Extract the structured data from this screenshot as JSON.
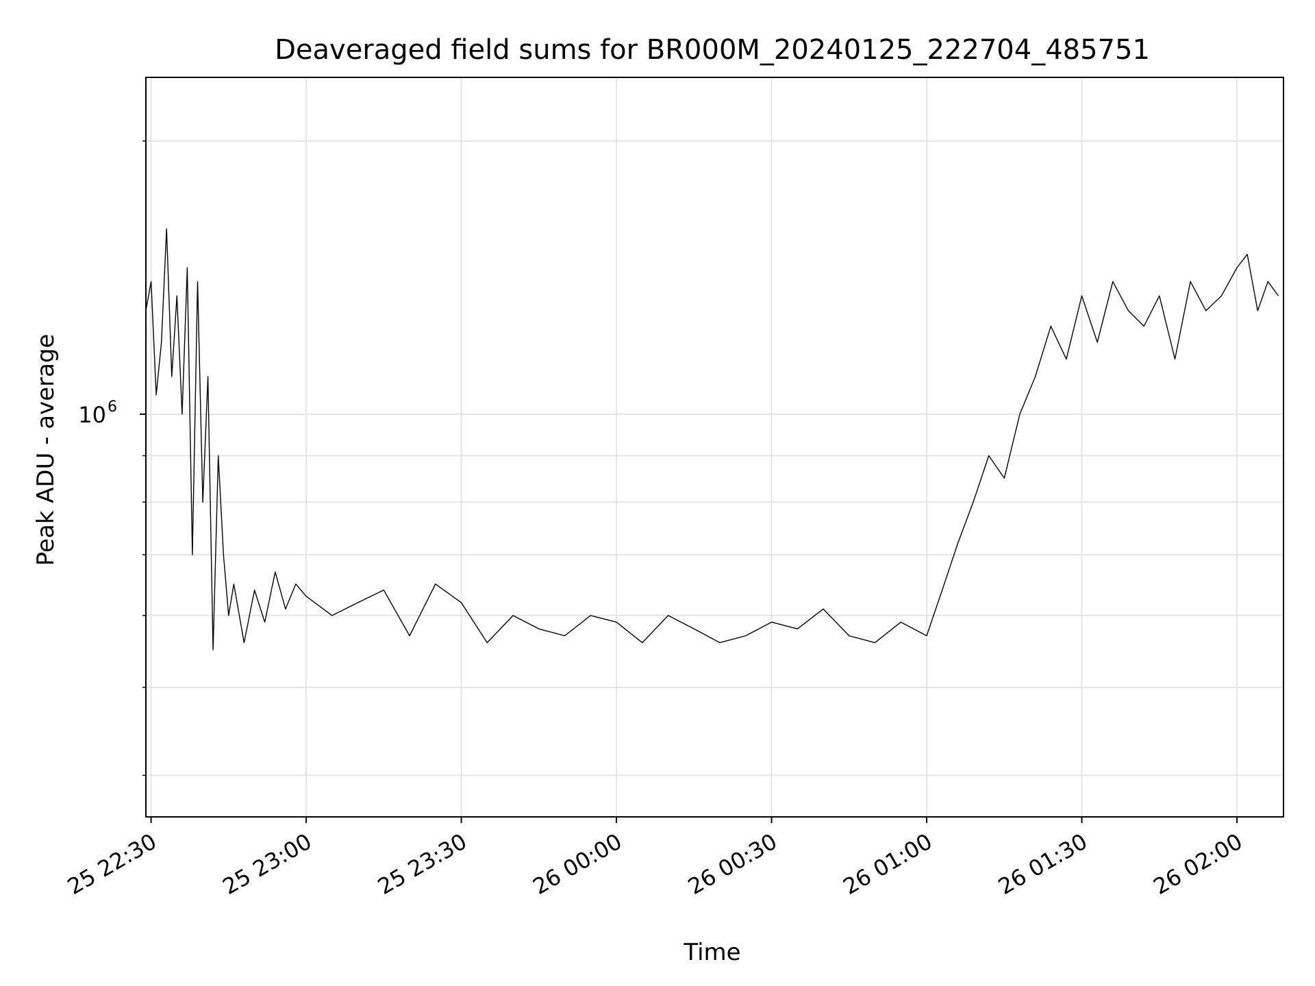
{
  "chart_data": {
    "type": "line",
    "title": "Deaveraged field sums for BR000M_20240125_222704_485751",
    "xlabel": "Time",
    "ylabel": "Peak ADU - average",
    "xscale": "time",
    "yscale": "log",
    "grid": true,
    "legend": "none",
    "xlim": [
      "2024-01-25 22:29:00",
      "2024-01-26 02:09:00"
    ],
    "ylim": [
      360000,
      2350000
    ],
    "x_ticks": [
      {
        "t": "2024-01-25 22:30:00",
        "label": "25 22:30"
      },
      {
        "t": "2024-01-25 23:00:00",
        "label": "25 23:00"
      },
      {
        "t": "2024-01-25 23:30:00",
        "label": "25 23:30"
      },
      {
        "t": "2024-01-26 00:00:00",
        "label": "26 00:00"
      },
      {
        "t": "2024-01-26 00:30:00",
        "label": "26 00:30"
      },
      {
        "t": "2024-01-26 01:00:00",
        "label": "26 01:00"
      },
      {
        "t": "2024-01-26 01:30:00",
        "label": "26 01:30"
      },
      {
        "t": "2024-01-26 02:00:00",
        "label": "26 02:00"
      }
    ],
    "y_major_ticks": [
      {
        "value": 1000000,
        "label": "10",
        "exponent": "6"
      }
    ],
    "y_minor_ticks": [
      400000,
      500000,
      600000,
      700000,
      800000,
      900000,
      2000000
    ],
    "series_color": "#000000",
    "series": [
      {
        "x": [
          "2024-01-25 22:29:00",
          "2024-01-25 22:30:00",
          "2024-01-25 22:31:00",
          "2024-01-25 22:32:00",
          "2024-01-25 22:33:00",
          "2024-01-25 22:34:00",
          "2024-01-25 22:35:00",
          "2024-01-25 22:36:00",
          "2024-01-25 22:37:00",
          "2024-01-25 22:38:00",
          "2024-01-25 22:39:00",
          "2024-01-25 22:40:00",
          "2024-01-25 22:41:00",
          "2024-01-25 22:42:00",
          "2024-01-25 22:43:00",
          "2024-01-25 22:44:00",
          "2024-01-25 22:45:00",
          "2024-01-25 22:46:00",
          "2024-01-25 22:48:00",
          "2024-01-25 22:50:00",
          "2024-01-25 22:52:00",
          "2024-01-25 22:54:00",
          "2024-01-25 22:56:00",
          "2024-01-25 22:58:00",
          "2024-01-25 23:00:00",
          "2024-01-25 23:05:00",
          "2024-01-25 23:10:00",
          "2024-01-25 23:15:00",
          "2024-01-25 23:20:00",
          "2024-01-25 23:25:00",
          "2024-01-25 23:30:00",
          "2024-01-25 23:35:00",
          "2024-01-25 23:40:00",
          "2024-01-25 23:45:00",
          "2024-01-25 23:50:00",
          "2024-01-25 23:55:00",
          "2024-01-26 00:00:00",
          "2024-01-26 00:05:00",
          "2024-01-26 00:10:00",
          "2024-01-26 00:15:00",
          "2024-01-26 00:20:00",
          "2024-01-26 00:25:00",
          "2024-01-26 00:30:00",
          "2024-01-26 00:35:00",
          "2024-01-26 00:40:00",
          "2024-01-26 00:45:00",
          "2024-01-26 00:50:00",
          "2024-01-26 00:55:00",
          "2024-01-26 01:00:00",
          "2024-01-26 01:03:00",
          "2024-01-26 01:06:00",
          "2024-01-26 01:09:00",
          "2024-01-26 01:12:00",
          "2024-01-26 01:15:00",
          "2024-01-26 01:18:00",
          "2024-01-26 01:21:00",
          "2024-01-26 01:24:00",
          "2024-01-26 01:27:00",
          "2024-01-26 01:30:00",
          "2024-01-26 01:33:00",
          "2024-01-26 01:36:00",
          "2024-01-26 01:39:00",
          "2024-01-26 01:42:00",
          "2024-01-26 01:45:00",
          "2024-01-26 01:48:00",
          "2024-01-26 01:51:00",
          "2024-01-26 01:54:00",
          "2024-01-26 01:57:00",
          "2024-01-26 02:00:00",
          "2024-01-26 02:02:00",
          "2024-01-26 02:04:00",
          "2024-01-26 02:06:00",
          "2024-01-26 02:08:00"
        ],
        "y": [
          1300000,
          1400000,
          1050000,
          1200000,
          1600000,
          1100000,
          1350000,
          1000000,
          1450000,
          700000,
          1400000,
          800000,
          1100000,
          550000,
          900000,
          700000,
          600000,
          650000,
          560000,
          640000,
          590000,
          670000,
          610000,
          650000,
          630000,
          600000,
          620000,
          640000,
          570000,
          650000,
          620000,
          560000,
          600000,
          580000,
          570000,
          600000,
          590000,
          560000,
          600000,
          580000,
          560000,
          570000,
          590000,
          580000,
          610000,
          570000,
          560000,
          590000,
          570000,
          640000,
          720000,
          800000,
          900000,
          850000,
          1000000,
          1100000,
          1250000,
          1150000,
          1350000,
          1200000,
          1400000,
          1300000,
          1250000,
          1350000,
          1150000,
          1400000,
          1300000,
          1350000,
          1450000,
          1500000,
          1300000,
          1400000,
          1350000
        ]
      }
    ]
  }
}
